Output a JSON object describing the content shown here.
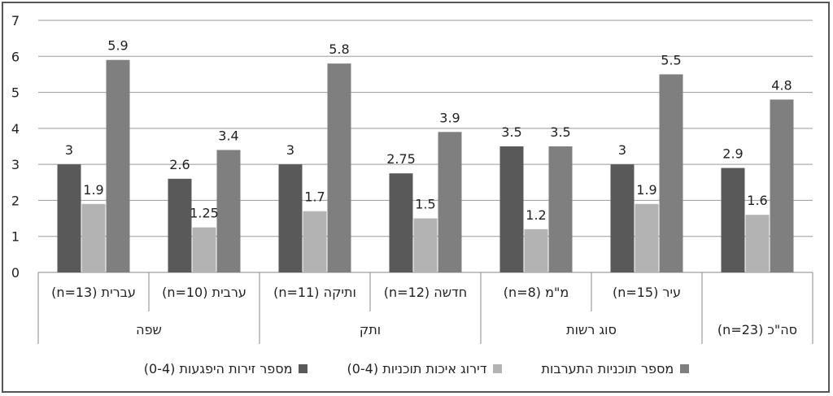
{
  "chart_data": {
    "type": "bar",
    "ylim": [
      0,
      7
    ],
    "yticks": [
      "0",
      "1",
      "2",
      "3",
      "4",
      "5",
      "6",
      "7"
    ],
    "grid": true,
    "legend_position": "bottom",
    "categories": [
      "עברית (n=13)",
      "ערבית (n=10)",
      "ותיקה (n=11)",
      "חדשה (n=12)",
      "מ\"מ (n=8)",
      "עיר (n=15)",
      ""
    ],
    "groups": [
      {
        "label": "שפה",
        "span": 2
      },
      {
        "label": "ותק",
        "span": 2
      },
      {
        "label": "סוג רשות",
        "span": 2
      },
      {
        "label": "סה\"כ (n=23)",
        "span": 1
      }
    ],
    "series": [
      {
        "name": "מספר זירות היפגעות (0-4)",
        "color": "#595959",
        "values": [
          3,
          2.6,
          3,
          2.75,
          3.5,
          3,
          2.9
        ],
        "labels": [
          "3",
          "2.6",
          "3",
          "2.75",
          "3.5",
          "3",
          "2.9"
        ]
      },
      {
        "name": "דירוג איכות תוכניות (0-4)",
        "color": "#b3b3b3",
        "values": [
          1.9,
          1.25,
          1.7,
          1.5,
          1.2,
          1.9,
          1.6
        ],
        "labels": [
          "1.9",
          "1.25",
          "1.7",
          "1.5",
          "1.2",
          "1.9",
          "1.6"
        ]
      },
      {
        "name": "מספר תוכניות התערבות",
        "color": "#7f7f7f",
        "values": [
          5.9,
          3.4,
          5.8,
          3.9,
          3.5,
          5.5,
          4.8
        ],
        "labels": [
          "5.9",
          "3.4",
          "5.8",
          "3.9",
          "3.5",
          "5.5",
          "4.8"
        ]
      }
    ]
  }
}
